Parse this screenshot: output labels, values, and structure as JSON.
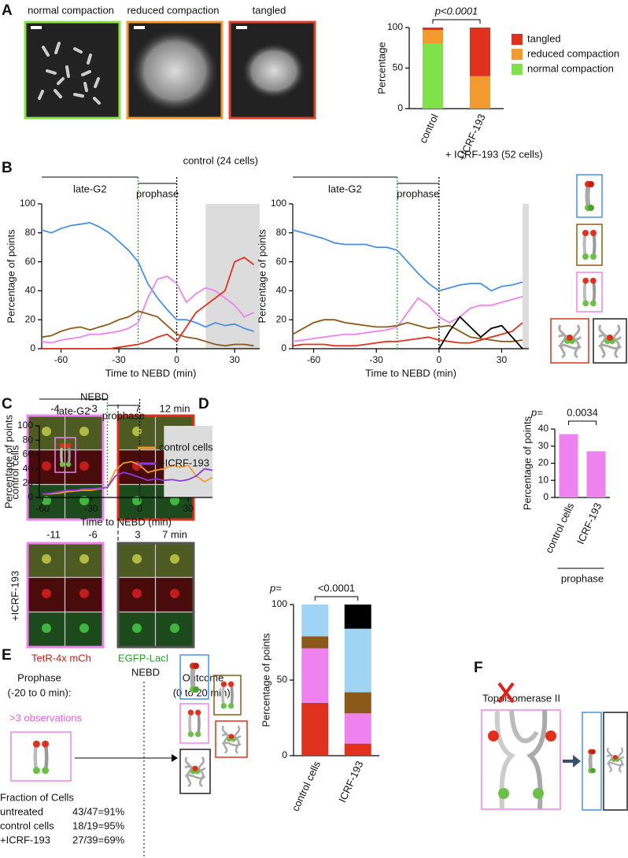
{
  "panel_labels": [
    "A",
    "B",
    "C",
    "D",
    "E",
    "F"
  ],
  "panel_a": {
    "image_labels": [
      "normal compaction",
      "reduced compaction",
      "tangled"
    ]
  },
  "panel_c": {
    "nebd": "NEBD",
    "control_label": "control cells",
    "icrf_label": "+ICRF-193",
    "control_times": [
      "-4",
      "-3",
      "7",
      "12 min"
    ],
    "icrf_times": [
      "-11",
      "-6",
      "3",
      "7 min"
    ],
    "channel_red": "TetR-4x mCh",
    "channel_green": "EGFP-LacI"
  },
  "panel_e": {
    "prophase": "Prophase",
    "prophase_range": "(-20 to 0 min):",
    "nebd": "NEBD",
    "outcome": "Outcome",
    "outcome_range": "(0 to 20 min):",
    "observations": ">3 observations",
    "fraction_title": "Fraction of Cells",
    "rows": [
      [
        "untreated",
        "43/47=91%"
      ],
      [
        "control cells",
        "18/19=95%"
      ],
      [
        "+ICRF-193",
        "27/39=69%"
      ]
    ]
  },
  "panel_f": {
    "label": "Topoisomerase II"
  },
  "chart_data": [
    {
      "type": "stacked_bar",
      "ylabel": "Percentage",
      "p_text": "p<0.0001",
      "categories": [
        "control",
        "+ICRF-193"
      ],
      "series": [
        {
          "name": "normal compaction",
          "color": "#7fe24a",
          "values": [
            80,
            0
          ]
        },
        {
          "name": "reduced compaction",
          "color": "#f29a2e",
          "values": [
            17,
            40
          ]
        },
        {
          "name": "tangled",
          "color": "#e0301e",
          "values": [
            3,
            60
          ]
        }
      ],
      "ylim": [
        0,
        100
      ],
      "yticks": [
        0,
        50,
        100
      ]
    },
    {
      "type": "line",
      "title": "control (24 cells)",
      "xlabel": "Time to NEBD (min)",
      "ylabel": "Percentage of points",
      "phases": [
        {
          "label": "late-G2",
          "range": [
            -70,
            -20
          ]
        },
        {
          "label": "prophase",
          "range": [
            -20,
            0
          ]
        }
      ],
      "vlines": [
        {
          "x": -20,
          "color": "#2a9d2a"
        },
        {
          "x": 0,
          "color": "#000000"
        }
      ],
      "shade": [
        15,
        43
      ],
      "x": [
        -70,
        -65,
        -60,
        -55,
        -50,
        -45,
        -40,
        -35,
        -30,
        -25,
        -20,
        -15,
        -10,
        -5,
        0,
        5,
        10,
        15,
        20,
        25,
        30,
        35,
        40
      ],
      "series": [
        {
          "color": "#4a90e2",
          "values": [
            82,
            80,
            83,
            85,
            86,
            87,
            84,
            80,
            74,
            68,
            60,
            45,
            35,
            27,
            20,
            20,
            18,
            15,
            18,
            16,
            17,
            14,
            12
          ]
        },
        {
          "color": "#ee82ee",
          "values": [
            5,
            4,
            6,
            7,
            8,
            10,
            10,
            11,
            12,
            14,
            18,
            35,
            48,
            50,
            45,
            32,
            38,
            42,
            40,
            35,
            30,
            22,
            25
          ]
        },
        {
          "color": "#8b5a1a",
          "values": [
            8,
            9,
            12,
            14,
            15,
            13,
            15,
            17,
            20,
            22,
            26,
            24,
            22,
            16,
            10,
            8,
            7,
            5,
            3,
            2,
            3,
            3,
            2
          ]
        },
        {
          "color": "#e0301e",
          "values": [
            0,
            0,
            0,
            0,
            0,
            0,
            0,
            0,
            1,
            2,
            3,
            5,
            8,
            10,
            5,
            15,
            25,
            30,
            35,
            40,
            60,
            63,
            58
          ]
        }
      ],
      "xlim": [
        -70,
        43
      ],
      "xticks": [
        -60,
        -30,
        0,
        30
      ],
      "ylim": [
        0,
        100
      ],
      "yticks": [
        0,
        20,
        40,
        60,
        80,
        100
      ]
    },
    {
      "type": "line",
      "title": "+ ICRF-193 (52 cells)",
      "xlabel": "Time to NEBD (min)",
      "ylabel": "Percentage of points",
      "phases": [
        {
          "label": "late-G2",
          "range": [
            -70,
            -20
          ]
        },
        {
          "label": "prophase",
          "range": [
            -20,
            0
          ]
        }
      ],
      "vlines": [
        {
          "x": -20,
          "color": "#2a9d2a"
        },
        {
          "x": 0,
          "color": "#000000"
        }
      ],
      "shade": [
        40,
        43
      ],
      "x": [
        -70,
        -65,
        -60,
        -55,
        -50,
        -45,
        -40,
        -35,
        -30,
        -25,
        -20,
        -15,
        -10,
        -5,
        0,
        5,
        10,
        15,
        20,
        25,
        30,
        35,
        40
      ],
      "series": [
        {
          "color": "#4a90e2",
          "values": [
            82,
            80,
            78,
            76,
            73,
            72,
            72,
            72,
            70,
            70,
            68,
            60,
            52,
            45,
            40,
            42,
            44,
            45,
            45,
            40,
            43,
            44,
            46
          ]
        },
        {
          "color": "#ee82ee",
          "values": [
            5,
            6,
            7,
            8,
            9,
            10,
            10,
            11,
            12,
            13,
            15,
            25,
            35,
            30,
            22,
            18,
            22,
            28,
            30,
            30,
            32,
            34,
            36
          ]
        },
        {
          "color": "#8b5a1a",
          "values": [
            10,
            14,
            18,
            20,
            20,
            18,
            17,
            16,
            15,
            15,
            16,
            18,
            16,
            14,
            15,
            16,
            12,
            8,
            7,
            6,
            5,
            5,
            6
          ]
        },
        {
          "color": "#e0301e",
          "values": [
            2,
            3,
            3,
            3,
            2,
            2,
            2,
            3,
            4,
            5,
            5,
            6,
            7,
            8,
            6,
            5,
            4,
            4,
            6,
            8,
            10,
            12,
            18
          ]
        },
        {
          "color": "#000000",
          "values": [
            null,
            null,
            null,
            null,
            null,
            null,
            null,
            null,
            null,
            null,
            null,
            null,
            null,
            null,
            0,
            12,
            22,
            15,
            8,
            14,
            16,
            8,
            0
          ]
        }
      ],
      "xlim": [
        -70,
        43
      ],
      "xticks": [
        -60,
        -30,
        0,
        30
      ],
      "ylim": [
        0,
        100
      ],
      "yticks": [
        0,
        20,
        40,
        60,
        80,
        100
      ]
    },
    {
      "type": "line",
      "xlabel": "Time to NEBD (min)",
      "ylabel": "Percentage of points",
      "phases": [
        {
          "label": "late-G2",
          "range": [
            -62,
            -20
          ]
        },
        {
          "label": "prophase",
          "range": [
            -20,
            0
          ]
        }
      ],
      "vlines": [
        {
          "x": -20,
          "color": "#2a9d2a"
        },
        {
          "x": 0,
          "color": "#000000"
        }
      ],
      "shade": [
        15,
        45
      ],
      "x": [
        -60,
        -55,
        -50,
        -45,
        -40,
        -35,
        -30,
        -25,
        -20,
        -15,
        -10,
        -5,
        0,
        5,
        10,
        15,
        20,
        25,
        30,
        35,
        40,
        45
      ],
      "series": [
        {
          "name": "control cells",
          "color": "#f29a2e",
          "values": [
            5,
            5,
            6,
            8,
            9,
            10,
            10,
            12,
            14,
            38,
            48,
            50,
            45,
            35,
            38,
            40,
            45,
            42,
            45,
            30,
            22,
            28
          ]
        },
        {
          "name": "+ICRF-193",
          "color": "#8a3be0",
          "values": [
            5,
            6,
            8,
            10,
            10,
            12,
            12,
            13,
            14,
            30,
            35,
            32,
            28,
            24,
            26,
            24,
            25,
            23,
            25,
            30,
            40,
            38
          ]
        }
      ],
      "xlim": [
        -62,
        45
      ],
      "xticks": [
        -60,
        -30,
        0,
        30
      ],
      "ylim": [
        0,
        100
      ],
      "yticks": [
        0,
        20,
        40,
        60,
        80,
        100
      ]
    },
    {
      "type": "bar",
      "ylabel": "Percentage of points",
      "p_label": "p=",
      "p_value": "0.0034",
      "group_label": "prophase",
      "categories": [
        "control cells",
        "ICRF-193"
      ],
      "values": [
        37,
        27
      ],
      "color": "#ee82ee",
      "ylim": [
        0,
        40
      ],
      "yticks": [
        0,
        10,
        20,
        30,
        40
      ]
    },
    {
      "type": "stacked_bar",
      "ylabel": "Percentage of points",
      "p_label": "p=",
      "p_value": "<0.0001",
      "categories": [
        "control cells",
        "ICRF-193"
      ],
      "series": [
        {
          "color": "#e0301e",
          "values": [
            35,
            8
          ]
        },
        {
          "color": "#ee82ee",
          "values": [
            36,
            20
          ]
        },
        {
          "color": "#8b5a1a",
          "values": [
            8,
            14
          ]
        },
        {
          "color": "#9fd4f5",
          "values": [
            21,
            42
          ]
        },
        {
          "color": "#000000",
          "values": [
            0,
            16
          ]
        }
      ],
      "ylim": [
        0,
        100
      ],
      "yticks": [
        0,
        50,
        100
      ]
    }
  ]
}
